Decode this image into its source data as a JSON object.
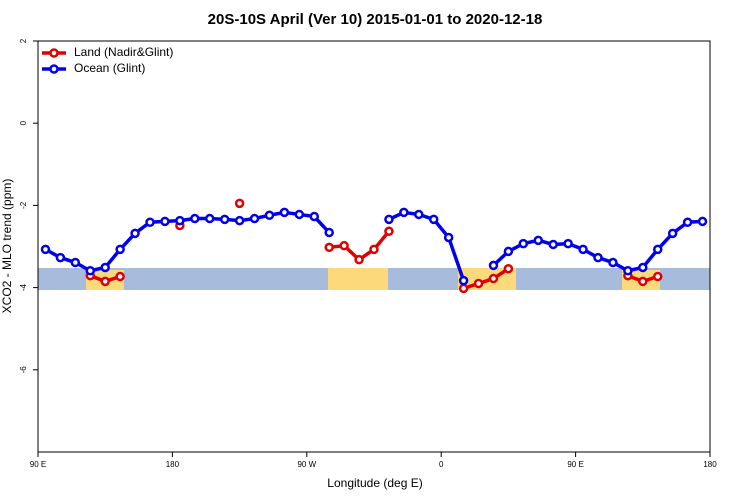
{
  "chart_data": {
    "type": "line",
    "title": "20S-10S April (Ver 10)   2015-01-01 to 2020-12-18",
    "x_label": "Longitude (deg E)",
    "y_label": "XCO2 - MLO trend (ppm)",
    "xlim": [
      90,
      540
    ],
    "xticks": [
      {
        "value": 90,
        "label": "90 E"
      },
      {
        "value": 180,
        "label": "180"
      },
      {
        "value": 270,
        "label": "90 W"
      },
      {
        "value": 360,
        "label": "0"
      },
      {
        "value": 450,
        "label": "90 E"
      },
      {
        "value": 540,
        "label": "180"
      }
    ],
    "ylim": [
      -8,
      2
    ],
    "yticks": [
      -6,
      -4,
      -2,
      0,
      2
    ],
    "legend": "top-left",
    "x": [
      95,
      105,
      115,
      125,
      135,
      145,
      155,
      165,
      175,
      185,
      195,
      205,
      215,
      225,
      235,
      245,
      255,
      265,
      275,
      285,
      295,
      305,
      315,
      325,
      335,
      345,
      355,
      365,
      375,
      385,
      395,
      405,
      415,
      425,
      435,
      445,
      455,
      465,
      475,
      485,
      495,
      505,
      515,
      525,
      535
    ],
    "series": [
      {
        "name": "Land (Nadir&Glint)",
        "color": "#e00000",
        "values": [
          null,
          null,
          null,
          -3.71,
          -3.85,
          -3.73,
          null,
          null,
          null,
          -2.49,
          null,
          null,
          null,
          -1.95,
          null,
          null,
          null,
          null,
          null,
          -3.02,
          -2.98,
          -3.32,
          -3.07,
          -2.63,
          null,
          null,
          null,
          null,
          -4.02,
          -3.9,
          -3.78,
          -3.54,
          null,
          null,
          null,
          null,
          null,
          null,
          null,
          -3.71,
          -3.85,
          -3.73,
          null,
          null,
          null
        ]
      },
      {
        "name": "Ocean (Glint)",
        "color": "#0000ee",
        "values": [
          -3.07,
          -3.27,
          -3.39,
          -3.59,
          -3.51,
          -3.07,
          -2.68,
          -2.41,
          -2.39,
          -2.37,
          -2.32,
          -2.32,
          -2.34,
          -2.37,
          -2.32,
          -2.24,
          -2.17,
          -2.22,
          -2.27,
          -2.66,
          null,
          null,
          null,
          -2.34,
          -2.17,
          -2.22,
          -2.34,
          -2.78,
          -3.83,
          null,
          -3.46,
          -3.12,
          -2.93,
          -2.85,
          -2.95,
          -2.93,
          -3.07,
          -3.27,
          -3.39,
          -3.59,
          -3.51,
          -3.07,
          -2.68,
          -2.41,
          -2.39
        ]
      }
    ]
  }
}
